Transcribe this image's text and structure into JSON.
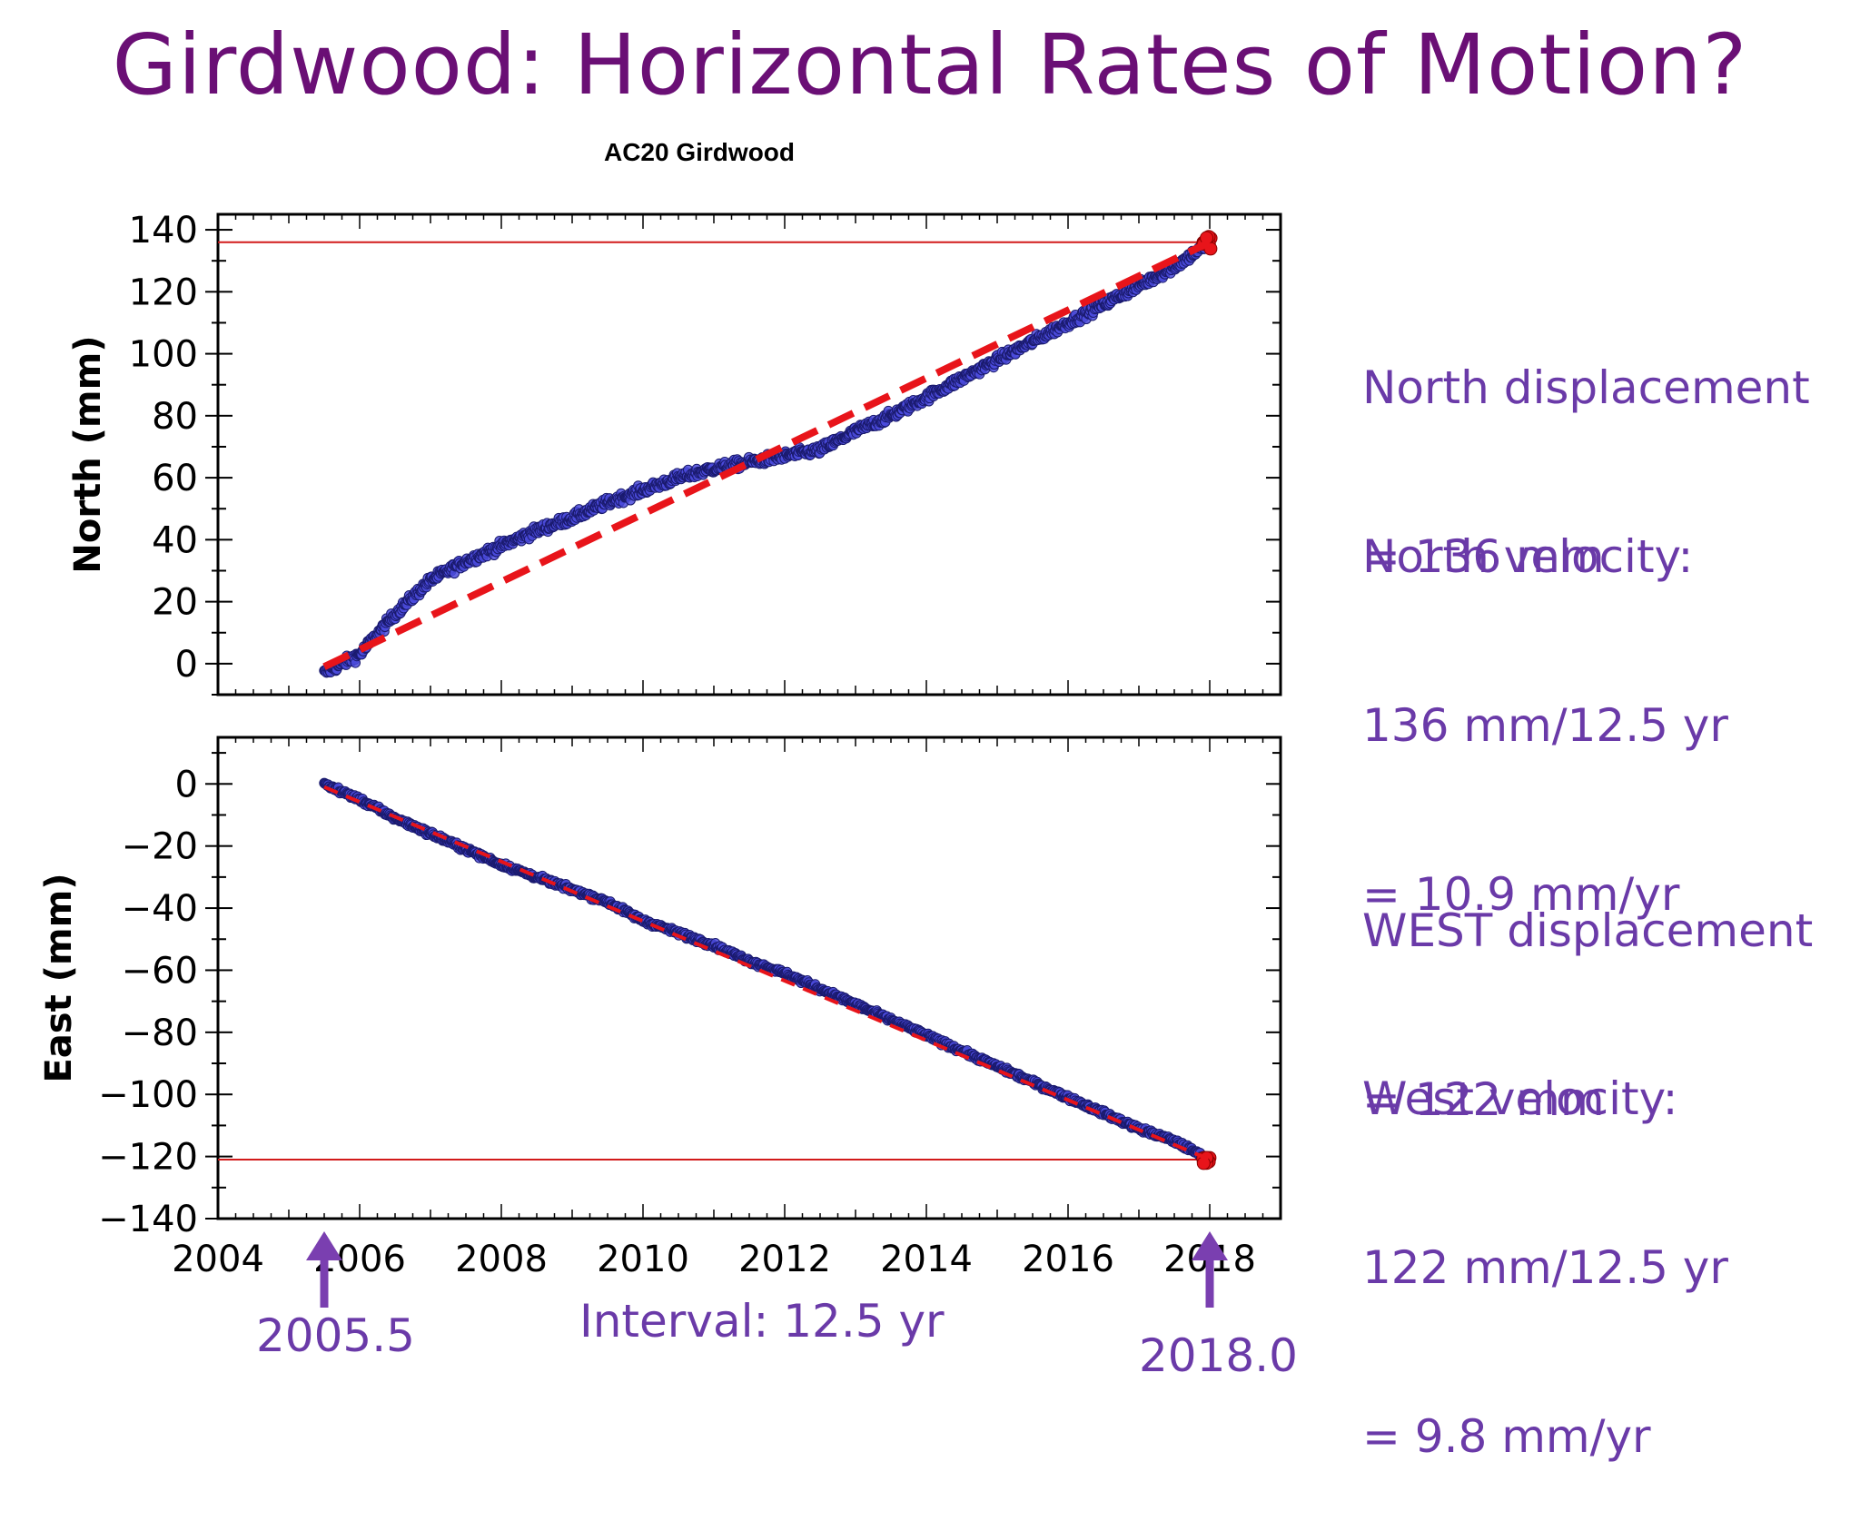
{
  "slide": {
    "title": "Girdwood: Horizontal Rates of Motion?"
  },
  "figure": {
    "station_title": "AC20 Girdwood"
  },
  "notes": {
    "north_displacement": [
      "North displacement",
      "= 136 mm"
    ],
    "north_velocity": [
      "North velocity:",
      "136 mm/12.5 yr",
      "= 10.9 mm/yr"
    ],
    "west_displacement": [
      "WEST displacement",
      "= 122 mm"
    ],
    "west_velocity": [
      "West velocity:",
      "122 mm/12.5 yr",
      "= 9.8 mm/yr"
    ]
  },
  "annotations": {
    "start_label": "2005.5",
    "end_label": "2018.0",
    "interval_label": "Interval: 12.5 yr"
  },
  "colors": {
    "title": "#6a0f75",
    "notes": "#6a3aa8",
    "points_fill": "#4b4bdc",
    "points_edge": "#1a1a6e",
    "fit_line": "#e8141a",
    "reference_line": "#d21a1a",
    "arrow": "#7a3fb0"
  },
  "chart_data": [
    {
      "type": "scatter",
      "title": "AC20 Girdwood",
      "xlabel": "",
      "ylabel": "North (mm)",
      "xlim": [
        2004,
        2019
      ],
      "ylim": [
        -10,
        145
      ],
      "yticks": [
        0,
        20,
        40,
        60,
        80,
        100,
        120,
        140
      ],
      "xticks": [
        2004,
        2006,
        2008,
        2010,
        2012,
        2014,
        2016,
        2018
      ],
      "x_tick_labels_shown": false,
      "series": [
        {
          "role": "observations",
          "x": [
            2005.5,
            2006.0,
            2006.5,
            2007.0,
            2007.5,
            2008.0,
            2008.5,
            2009.0,
            2009.5,
            2010.0,
            2010.5,
            2011.0,
            2011.5,
            2012.0,
            2012.5,
            2013.0,
            2013.5,
            2014.0,
            2014.5,
            2015.0,
            2015.5,
            2016.0,
            2016.5,
            2017.0,
            2017.5,
            2018.0
          ],
          "y": [
            -3,
            3,
            16,
            27,
            33,
            38,
            43,
            47,
            52,
            56,
            60,
            63,
            65,
            67,
            69,
            75,
            80,
            86,
            92,
            98,
            104,
            110,
            116,
            122,
            128,
            136
          ]
        },
        {
          "role": "linear fit",
          "x": [
            2005.5,
            2018.0
          ],
          "y": [
            -1,
            136
          ]
        },
        {
          "role": "reference level",
          "x": [
            2004,
            2018.0
          ],
          "y": [
            136,
            136
          ]
        }
      ],
      "grid": false
    },
    {
      "type": "scatter",
      "title": "",
      "xlabel": "",
      "ylabel": "East (mm)",
      "xlim": [
        2004,
        2019
      ],
      "ylim": [
        -140,
        15
      ],
      "yticks": [
        0,
        -20,
        -40,
        -60,
        -80,
        -100,
        -120,
        -140
      ],
      "xticks": [
        2004,
        2006,
        2008,
        2010,
        2012,
        2014,
        2016,
        2018
      ],
      "x_tick_labels_shown": true,
      "series": [
        {
          "role": "observations",
          "x": [
            2005.5,
            2006.0,
            2006.5,
            2007.0,
            2007.5,
            2008.0,
            2008.5,
            2009.0,
            2009.5,
            2010.0,
            2010.5,
            2011.0,
            2011.5,
            2012.0,
            2012.5,
            2013.0,
            2013.5,
            2014.0,
            2014.5,
            2015.0,
            2015.5,
            2016.0,
            2016.5,
            2017.0,
            2017.5,
            2018.0
          ],
          "y": [
            0,
            -5,
            -11,
            -16,
            -21,
            -26,
            -30,
            -34,
            -38,
            -44,
            -48,
            -52,
            -57,
            -61,
            -66,
            -71,
            -76,
            -81,
            -86,
            -91,
            -96,
            -101,
            -106,
            -111,
            -115,
            -121
          ]
        },
        {
          "role": "linear fit",
          "x": [
            2005.5,
            2018.0
          ],
          "y": [
            -1,
            -121
          ]
        },
        {
          "role": "reference level",
          "x": [
            2004,
            2018.0
          ],
          "y": [
            -121,
            -121
          ]
        }
      ],
      "grid": false
    }
  ]
}
